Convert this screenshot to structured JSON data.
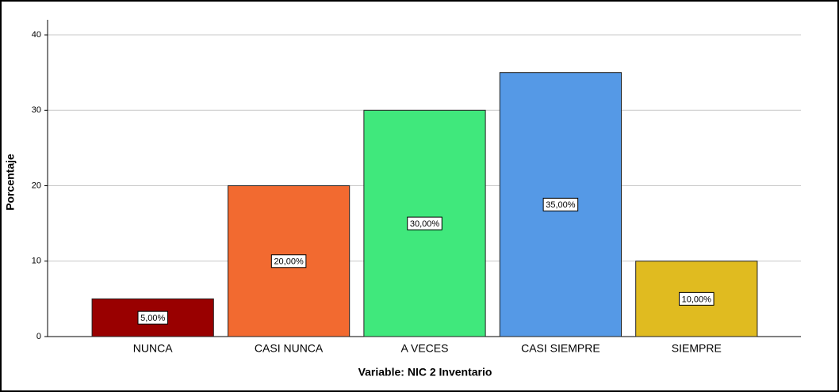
{
  "chart_data": {
    "type": "bar",
    "x_label": "Variable: NIC 2 Inventario",
    "y_label": "Porcentaje",
    "categories": [
      "NUNCA",
      "CASI NUNCA",
      "A VECES",
      "CASI SIEMPRE",
      "SIEMPRE"
    ],
    "values": [
      5,
      20,
      30,
      35,
      10
    ],
    "value_labels": [
      "5,00%",
      "20,00%",
      "30,00%",
      "35,00%",
      "10,00%"
    ],
    "colors": [
      "#990000",
      "#f26a30",
      "#40e87c",
      "#5599e6",
      "#e0bb20"
    ],
    "ylim": [
      0,
      42
    ],
    "yticks": [
      0,
      10,
      20,
      30,
      40
    ],
    "grid": true
  }
}
